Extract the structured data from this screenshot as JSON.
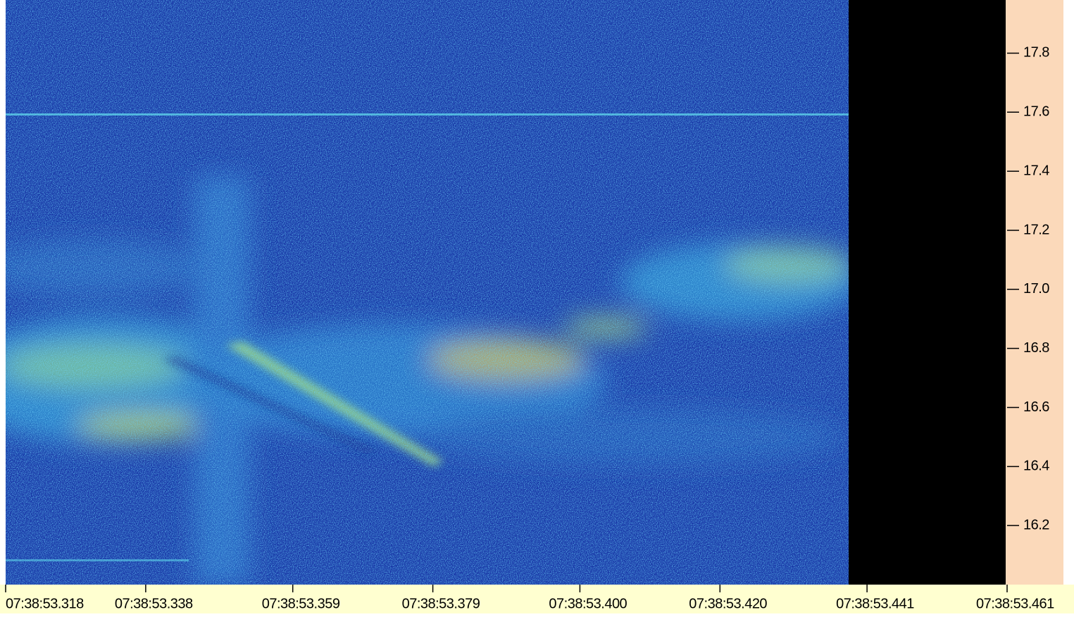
{
  "chart_data": {
    "type": "spectrogram",
    "xlim": [
      53.318,
      53.461
    ],
    "xticks": [
      {
        "value": 53.318,
        "label": "07:38:53.318"
      },
      {
        "value": 53.338,
        "label": "07:38:53.338"
      },
      {
        "value": 53.359,
        "label": "07:38:53.359"
      },
      {
        "value": 53.379,
        "label": "07:38:53.379"
      },
      {
        "value": 53.4,
        "label": "07:38:53.400"
      },
      {
        "value": 53.42,
        "label": "07:38:53.420"
      },
      {
        "value": 53.441,
        "label": "07:38:53.441"
      },
      {
        "value": 53.461,
        "label": "07:38:53.461"
      }
    ],
    "ylim": [
      16.0,
      17.98
    ],
    "yticks": [
      {
        "value": 16.2,
        "label": "16.2"
      },
      {
        "value": 16.4,
        "label": "16.4"
      },
      {
        "value": 16.6,
        "label": "16.6"
      },
      {
        "value": 16.8,
        "label": "16.8"
      },
      {
        "value": 17.0,
        "label": "17.0"
      },
      {
        "value": 17.2,
        "label": "17.2"
      },
      {
        "value": 17.4,
        "label": "17.4"
      },
      {
        "value": 17.6,
        "label": "17.6"
      },
      {
        "value": 17.8,
        "label": "17.8"
      }
    ]
  }
}
